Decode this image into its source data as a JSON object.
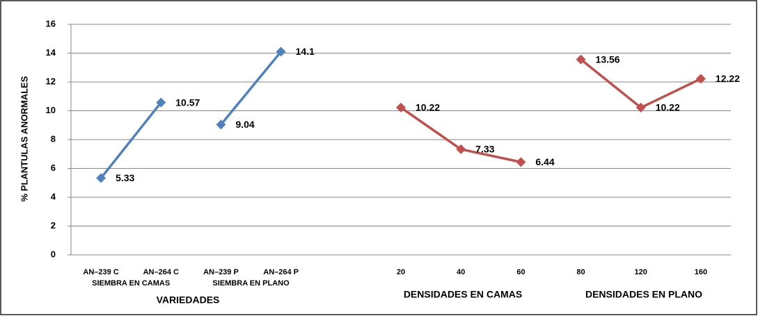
{
  "chart_data": {
    "type": "line",
    "y_label": "% PLANTULAS ANORMALES",
    "categories": [
      "AN–239 C",
      "AN–264 C",
      "AN–239 P",
      "AN–264 P",
      null,
      "20",
      "40",
      "60",
      "80",
      "120",
      "160"
    ],
    "group_labels": [
      "SIEMBRA EN CAMAS",
      "SIEMBRA EN PLANO"
    ],
    "x_labels": [
      "VARIEDADES",
      "DENSIDADES EN CAMAS",
      "DENSIDADES EN PLANO"
    ],
    "series": [
      {
        "color": "#4f81bd",
        "values": [
          5.33,
          10.57,
          null,
          null,
          null,
          null,
          null,
          null,
          null,
          null,
          null
        ]
      },
      {
        "color": "#4f81bd",
        "values": [
          null,
          null,
          9.04,
          14.1,
          null,
          null,
          null,
          null,
          null,
          null,
          null
        ]
      },
      {
        "color": "#c0504d",
        "values": [
          null,
          null,
          null,
          null,
          null,
          10.22,
          7.33,
          6.44,
          null,
          null,
          null
        ]
      },
      {
        "color": "#c0504d",
        "values": [
          null,
          null,
          null,
          null,
          null,
          null,
          null,
          null,
          13.56,
          10.22,
          12.22
        ]
      }
    ],
    "ylim": [
      0,
      16
    ],
    "yticks": [
      0,
      2,
      4,
      6,
      8,
      10,
      12,
      14,
      16
    ],
    "grid": true
  }
}
